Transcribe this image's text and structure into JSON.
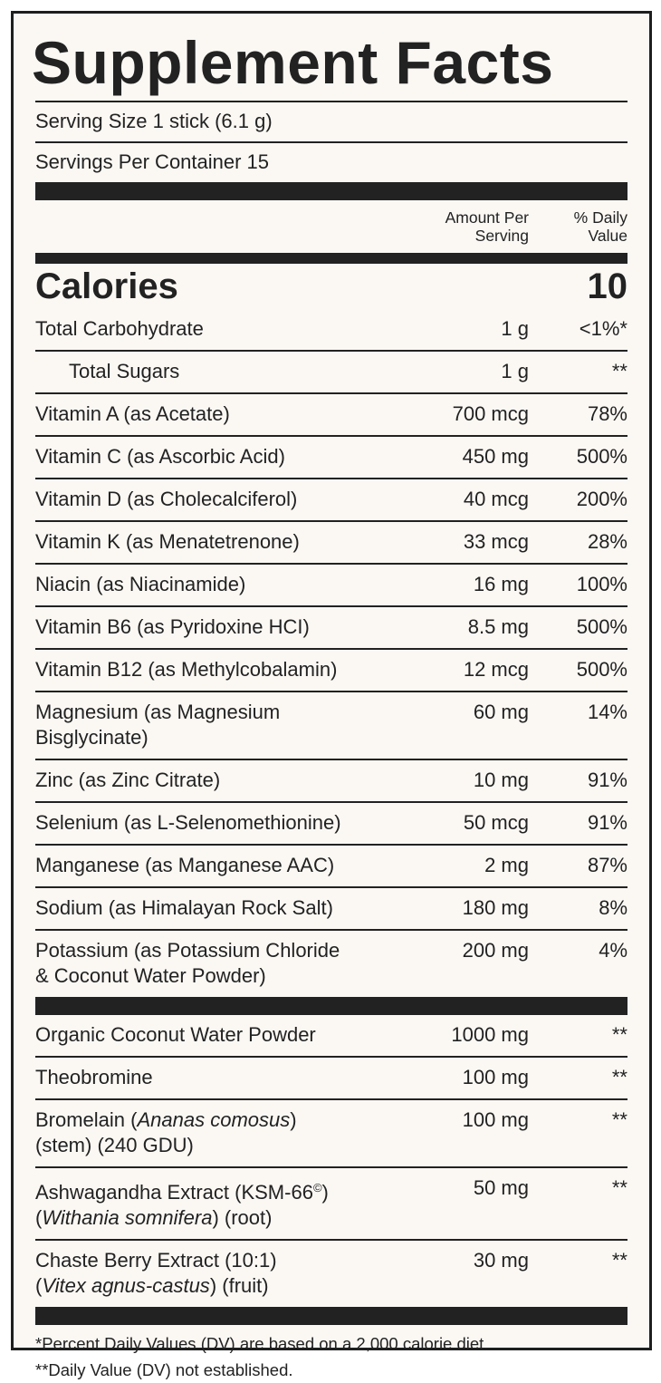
{
  "title": "Supplement Facts",
  "serving_size": "Serving Size 1 stick (6.1 g)",
  "servings_per_container": "Servings Per Container 15",
  "header": {
    "amount": "Amount Per\nServing",
    "dv": "% Daily\nValue"
  },
  "calories": {
    "label": "Calories",
    "value": "10"
  },
  "nutrients": [
    {
      "name": "Total Carbohydrate",
      "amount": "1 g",
      "dv": "<1%*",
      "sub": {
        "name": "Total Sugars",
        "amount": "1 g",
        "dv": "**"
      }
    },
    {
      "name": "Vitamin A (as Acetate)",
      "amount": "700 mcg",
      "dv": "78%"
    },
    {
      "name": "Vitamin C (as Ascorbic Acid)",
      "amount": "450 mg",
      "dv": "500%"
    },
    {
      "name": "Vitamin D (as Cholecalciferol)",
      "amount": "40 mcg",
      "dv": "200%"
    },
    {
      "name": "Vitamin K (as Menatetrenone)",
      "amount": "33 mcg",
      "dv": "28%"
    },
    {
      "name": "Niacin (as Niacinamide)",
      "amount": "16 mg",
      "dv": "100%"
    },
    {
      "name": "Vitamin B6 (as Pyridoxine HCI)",
      "amount": "8.5 mg",
      "dv": "500%"
    },
    {
      "name": "Vitamin B12 (as Methylcobalamin)",
      "amount": "12 mcg",
      "dv": "500%"
    },
    {
      "name": "Magnesium (as Magnesium\nBisglycinate)",
      "amount": "60 mg",
      "dv": "14%"
    },
    {
      "name": "Zinc (as Zinc Citrate)",
      "amount": "10 mg",
      "dv": "91%"
    },
    {
      "name": "Selenium (as L-Selenomethionine)",
      "amount": "50 mcg",
      "dv": "91%"
    },
    {
      "name": "Manganese (as Manganese AAC)",
      "amount": "2 mg",
      "dv": "87%"
    },
    {
      "name": "Sodium (as Himalayan Rock Salt)",
      "amount": "180 mg",
      "dv": "8%"
    },
    {
      "name": "Potassium (as Potassium Chloride\n& Coconut Water Powder)",
      "amount": "200 mg",
      "dv": "4%"
    }
  ],
  "other_ingredients": [
    {
      "name": "Organic Coconut Water Powder",
      "amount": "1000 mg",
      "dv": "**"
    },
    {
      "name": "Theobromine",
      "amount": "100 mg",
      "dv": "**"
    },
    {
      "name": [
        "Bromelain (",
        {
          "text": "Ananas comosus",
          "style": "italic"
        },
        ")\n(stem) (240 GDU)"
      ],
      "amount": "100 mg",
      "dv": "**"
    },
    {
      "name": [
        "Ashwagandha Extract (KSM-66",
        {
          "text": "©",
          "style": "sup"
        },
        ")\n(",
        {
          "text": "Withania somnifera",
          "style": "italic"
        },
        ") (root)"
      ],
      "amount": "50 mg",
      "dv": "**"
    },
    {
      "name": [
        "Chaste Berry Extract (10:1)\n(",
        {
          "text": "Vitex agnus-castus",
          "style": "italic"
        },
        ") (fruit)"
      ],
      "amount": "30 mg",
      "dv": "**"
    }
  ],
  "footnotes": [
    "*Percent Daily Values (DV) are based on a 2,000 calorie diet.",
    "**Daily Value (DV) not established."
  ]
}
